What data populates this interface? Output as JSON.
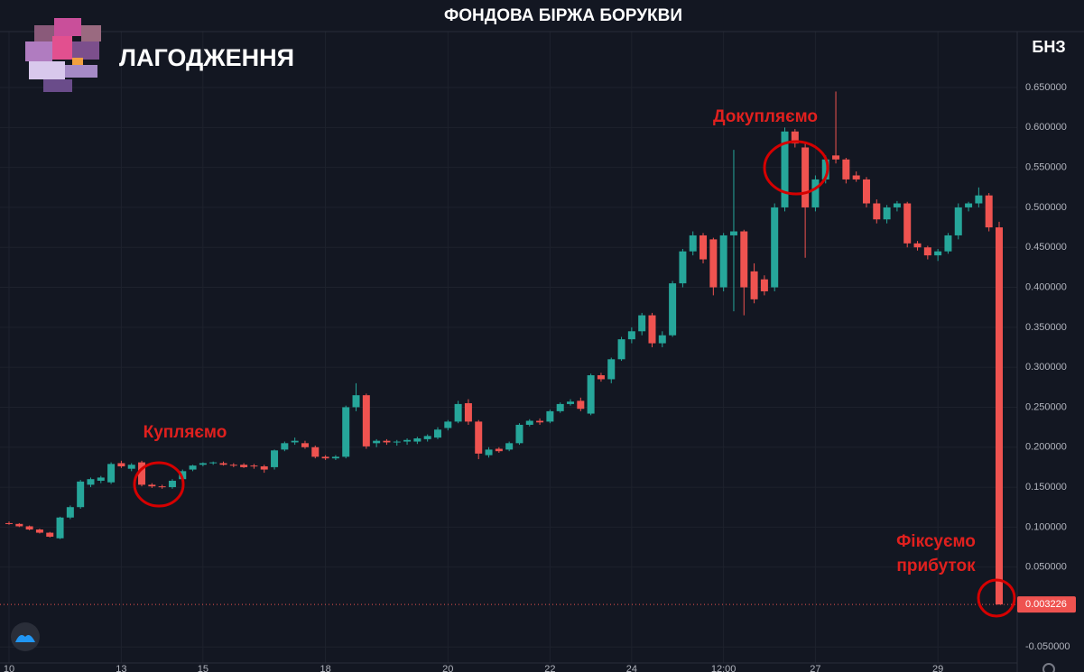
{
  "chart_data": {
    "type": "candlestick",
    "title": "ФОНДОВА БІРЖА БОРУКВИ",
    "symbol": "БНЗ",
    "overlay_text": "ЛАГОДЖЕННЯ",
    "annotations": [
      "Купляємо",
      "Докупляємо",
      "Фіксуємо",
      "прибуток"
    ],
    "up_color": "#26a69a",
    "down_color": "#ef5350",
    "grid": true,
    "categories": [
      "10",
      null,
      null,
      null,
      null,
      null,
      null,
      null,
      null,
      null,
      null,
      "13",
      null,
      null,
      null,
      null,
      null,
      null,
      null,
      "15",
      null,
      null,
      null,
      null,
      null,
      null,
      null,
      null,
      null,
      null,
      null,
      "18",
      null,
      null,
      null,
      null,
      null,
      null,
      null,
      null,
      null,
      null,
      null,
      "20",
      null,
      null,
      null,
      null,
      null,
      null,
      null,
      null,
      null,
      "22",
      null,
      null,
      null,
      null,
      null,
      null,
      null,
      "24",
      null,
      null,
      null,
      null,
      null,
      null,
      null,
      null,
      "12:00",
      null,
      null,
      null,
      null,
      null,
      null,
      null,
      null,
      "27",
      null,
      null,
      null,
      null,
      null,
      null,
      null,
      null,
      null,
      null,
      null,
      "29",
      null,
      null,
      null,
      null,
      null,
      null
    ],
    "open": [
      0.105,
      0.104,
      0.101,
      0.097,
      0.093,
      0.086,
      0.112,
      0.125,
      0.153,
      0.158,
      0.156,
      0.18,
      0.173,
      0.181,
      0.153,
      0.151,
      0.15,
      0.16,
      0.172,
      0.178,
      0.18,
      0.18,
      0.178,
      0.178,
      0.177,
      0.176,
      0.175,
      0.197,
      0.206,
      0.205,
      0.2,
      0.188,
      0.186,
      0.188,
      0.25,
      0.265,
      0.205,
      0.208,
      0.206,
      0.207,
      0.207,
      0.21,
      0.212,
      0.224,
      0.232,
      0.255,
      0.232,
      0.19,
      0.198,
      0.197,
      0.205,
      0.228,
      0.233,
      0.232,
      0.245,
      0.254,
      0.258,
      0.242,
      0.29,
      0.285,
      0.31,
      0.335,
      0.345,
      0.365,
      0.33,
      0.34,
      0.405,
      0.445,
      0.465,
      0.46,
      0.4,
      0.465,
      0.47,
      0.42,
      0.41,
      0.4,
      0.5,
      0.595,
      0.575,
      0.5,
      0.535,
      0.565,
      0.56,
      0.54,
      0.535,
      0.505,
      0.485,
      0.5,
      0.505,
      0.455,
      0.45,
      0.44,
      0.445,
      0.465,
      0.5,
      0.505,
      0.515,
      0.475
    ],
    "high": [
      0.107,
      0.105,
      0.102,
      0.098,
      0.094,
      0.113,
      0.127,
      0.159,
      0.162,
      0.164,
      0.181,
      0.183,
      0.18,
      0.183,
      0.155,
      0.153,
      0.16,
      0.172,
      0.178,
      0.181,
      0.182,
      0.182,
      0.18,
      0.18,
      0.179,
      0.178,
      0.197,
      0.207,
      0.212,
      0.208,
      0.202,
      0.19,
      0.19,
      0.252,
      0.28,
      0.267,
      0.21,
      0.21,
      0.209,
      0.211,
      0.213,
      0.216,
      0.225,
      0.234,
      0.258,
      0.26,
      0.234,
      0.2,
      0.2,
      0.207,
      0.23,
      0.235,
      0.236,
      0.247,
      0.256,
      0.26,
      0.262,
      0.292,
      0.293,
      0.312,
      0.338,
      0.35,
      0.368,
      0.368,
      0.345,
      0.408,
      0.448,
      0.47,
      0.468,
      0.462,
      0.468,
      0.572,
      0.472,
      0.43,
      0.415,
      0.505,
      0.6,
      0.598,
      0.58,
      0.54,
      0.565,
      0.645,
      0.562,
      0.545,
      0.538,
      0.51,
      0.503,
      0.508,
      0.507,
      0.458,
      0.452,
      0.448,
      0.468,
      0.505,
      0.507,
      0.525,
      0.518,
      0.482
    ],
    "low": [
      0.103,
      0.1,
      0.096,
      0.092,
      0.087,
      0.085,
      0.11,
      0.123,
      0.15,
      0.155,
      0.154,
      0.174,
      0.17,
      0.151,
      0.149,
      0.148,
      0.148,
      0.158,
      0.17,
      0.176,
      0.178,
      0.177,
      0.175,
      0.174,
      0.173,
      0.168,
      0.172,
      0.195,
      0.203,
      0.198,
      0.186,
      0.184,
      0.184,
      0.186,
      0.245,
      0.198,
      0.2,
      0.203,
      0.202,
      0.203,
      0.204,
      0.207,
      0.21,
      0.221,
      0.23,
      0.228,
      0.185,
      0.187,
      0.193,
      0.195,
      0.203,
      0.226,
      0.228,
      0.23,
      0.243,
      0.252,
      0.245,
      0.24,
      0.282,
      0.28,
      0.308,
      0.33,
      0.34,
      0.325,
      0.325,
      0.338,
      0.4,
      0.44,
      0.43,
      0.39,
      0.395,
      0.37,
      0.365,
      0.38,
      0.39,
      0.395,
      0.495,
      0.575,
      0.437,
      0.495,
      0.53,
      0.555,
      0.53,
      0.532,
      0.5,
      0.48,
      0.48,
      0.495,
      0.45,
      0.446,
      0.435,
      0.433,
      0.442,
      0.46,
      0.495,
      0.5,
      0.47,
      0.003226
    ],
    "close": [
      0.104,
      0.101,
      0.097,
      0.093,
      0.088,
      0.112,
      0.125,
      0.157,
      0.16,
      0.162,
      0.179,
      0.176,
      0.178,
      0.153,
      0.151,
      0.15,
      0.158,
      0.17,
      0.177,
      0.18,
      0.181,
      0.178,
      0.177,
      0.175,
      0.176,
      0.172,
      0.196,
      0.205,
      0.208,
      0.2,
      0.188,
      0.186,
      0.188,
      0.25,
      0.265,
      0.201,
      0.208,
      0.206,
      0.207,
      0.209,
      0.211,
      0.214,
      0.222,
      0.232,
      0.254,
      0.232,
      0.192,
      0.197,
      0.195,
      0.205,
      0.228,
      0.233,
      0.231,
      0.245,
      0.254,
      0.257,
      0.248,
      0.29,
      0.285,
      0.31,
      0.335,
      0.345,
      0.365,
      0.33,
      0.34,
      0.405,
      0.445,
      0.465,
      0.435,
      0.4,
      0.465,
      0.47,
      0.4,
      0.385,
      0.395,
      0.5,
      0.595,
      0.58,
      0.5,
      0.535,
      0.56,
      0.56,
      0.535,
      0.535,
      0.505,
      0.485,
      0.5,
      0.505,
      0.455,
      0.45,
      0.44,
      0.445,
      0.465,
      0.5,
      0.505,
      0.515,
      0.475,
      0.003226
    ],
    "ylim": [
      -0.07,
      0.72
    ],
    "yticks": [
      {
        "value": 0.65,
        "label": "0.650000"
      },
      {
        "value": 0.6,
        "label": "0.600000"
      },
      {
        "value": 0.55,
        "label": "0.550000"
      },
      {
        "value": 0.5,
        "label": "0.500000"
      },
      {
        "value": 0.45,
        "label": "0.450000"
      },
      {
        "value": 0.4,
        "label": "0.400000"
      },
      {
        "value": 0.35,
        "label": "0.350000"
      },
      {
        "value": 0.3,
        "label": "0.300000"
      },
      {
        "value": 0.25,
        "label": "0.250000"
      },
      {
        "value": 0.2,
        "label": "0.200000"
      },
      {
        "value": 0.15,
        "label": "0.150000"
      },
      {
        "value": 0.1,
        "label": "0.100000"
      },
      {
        "value": 0.05,
        "label": "0.050000"
      },
      {
        "value": -0.05,
        "label": "-0.050000"
      }
    ]
  }
}
